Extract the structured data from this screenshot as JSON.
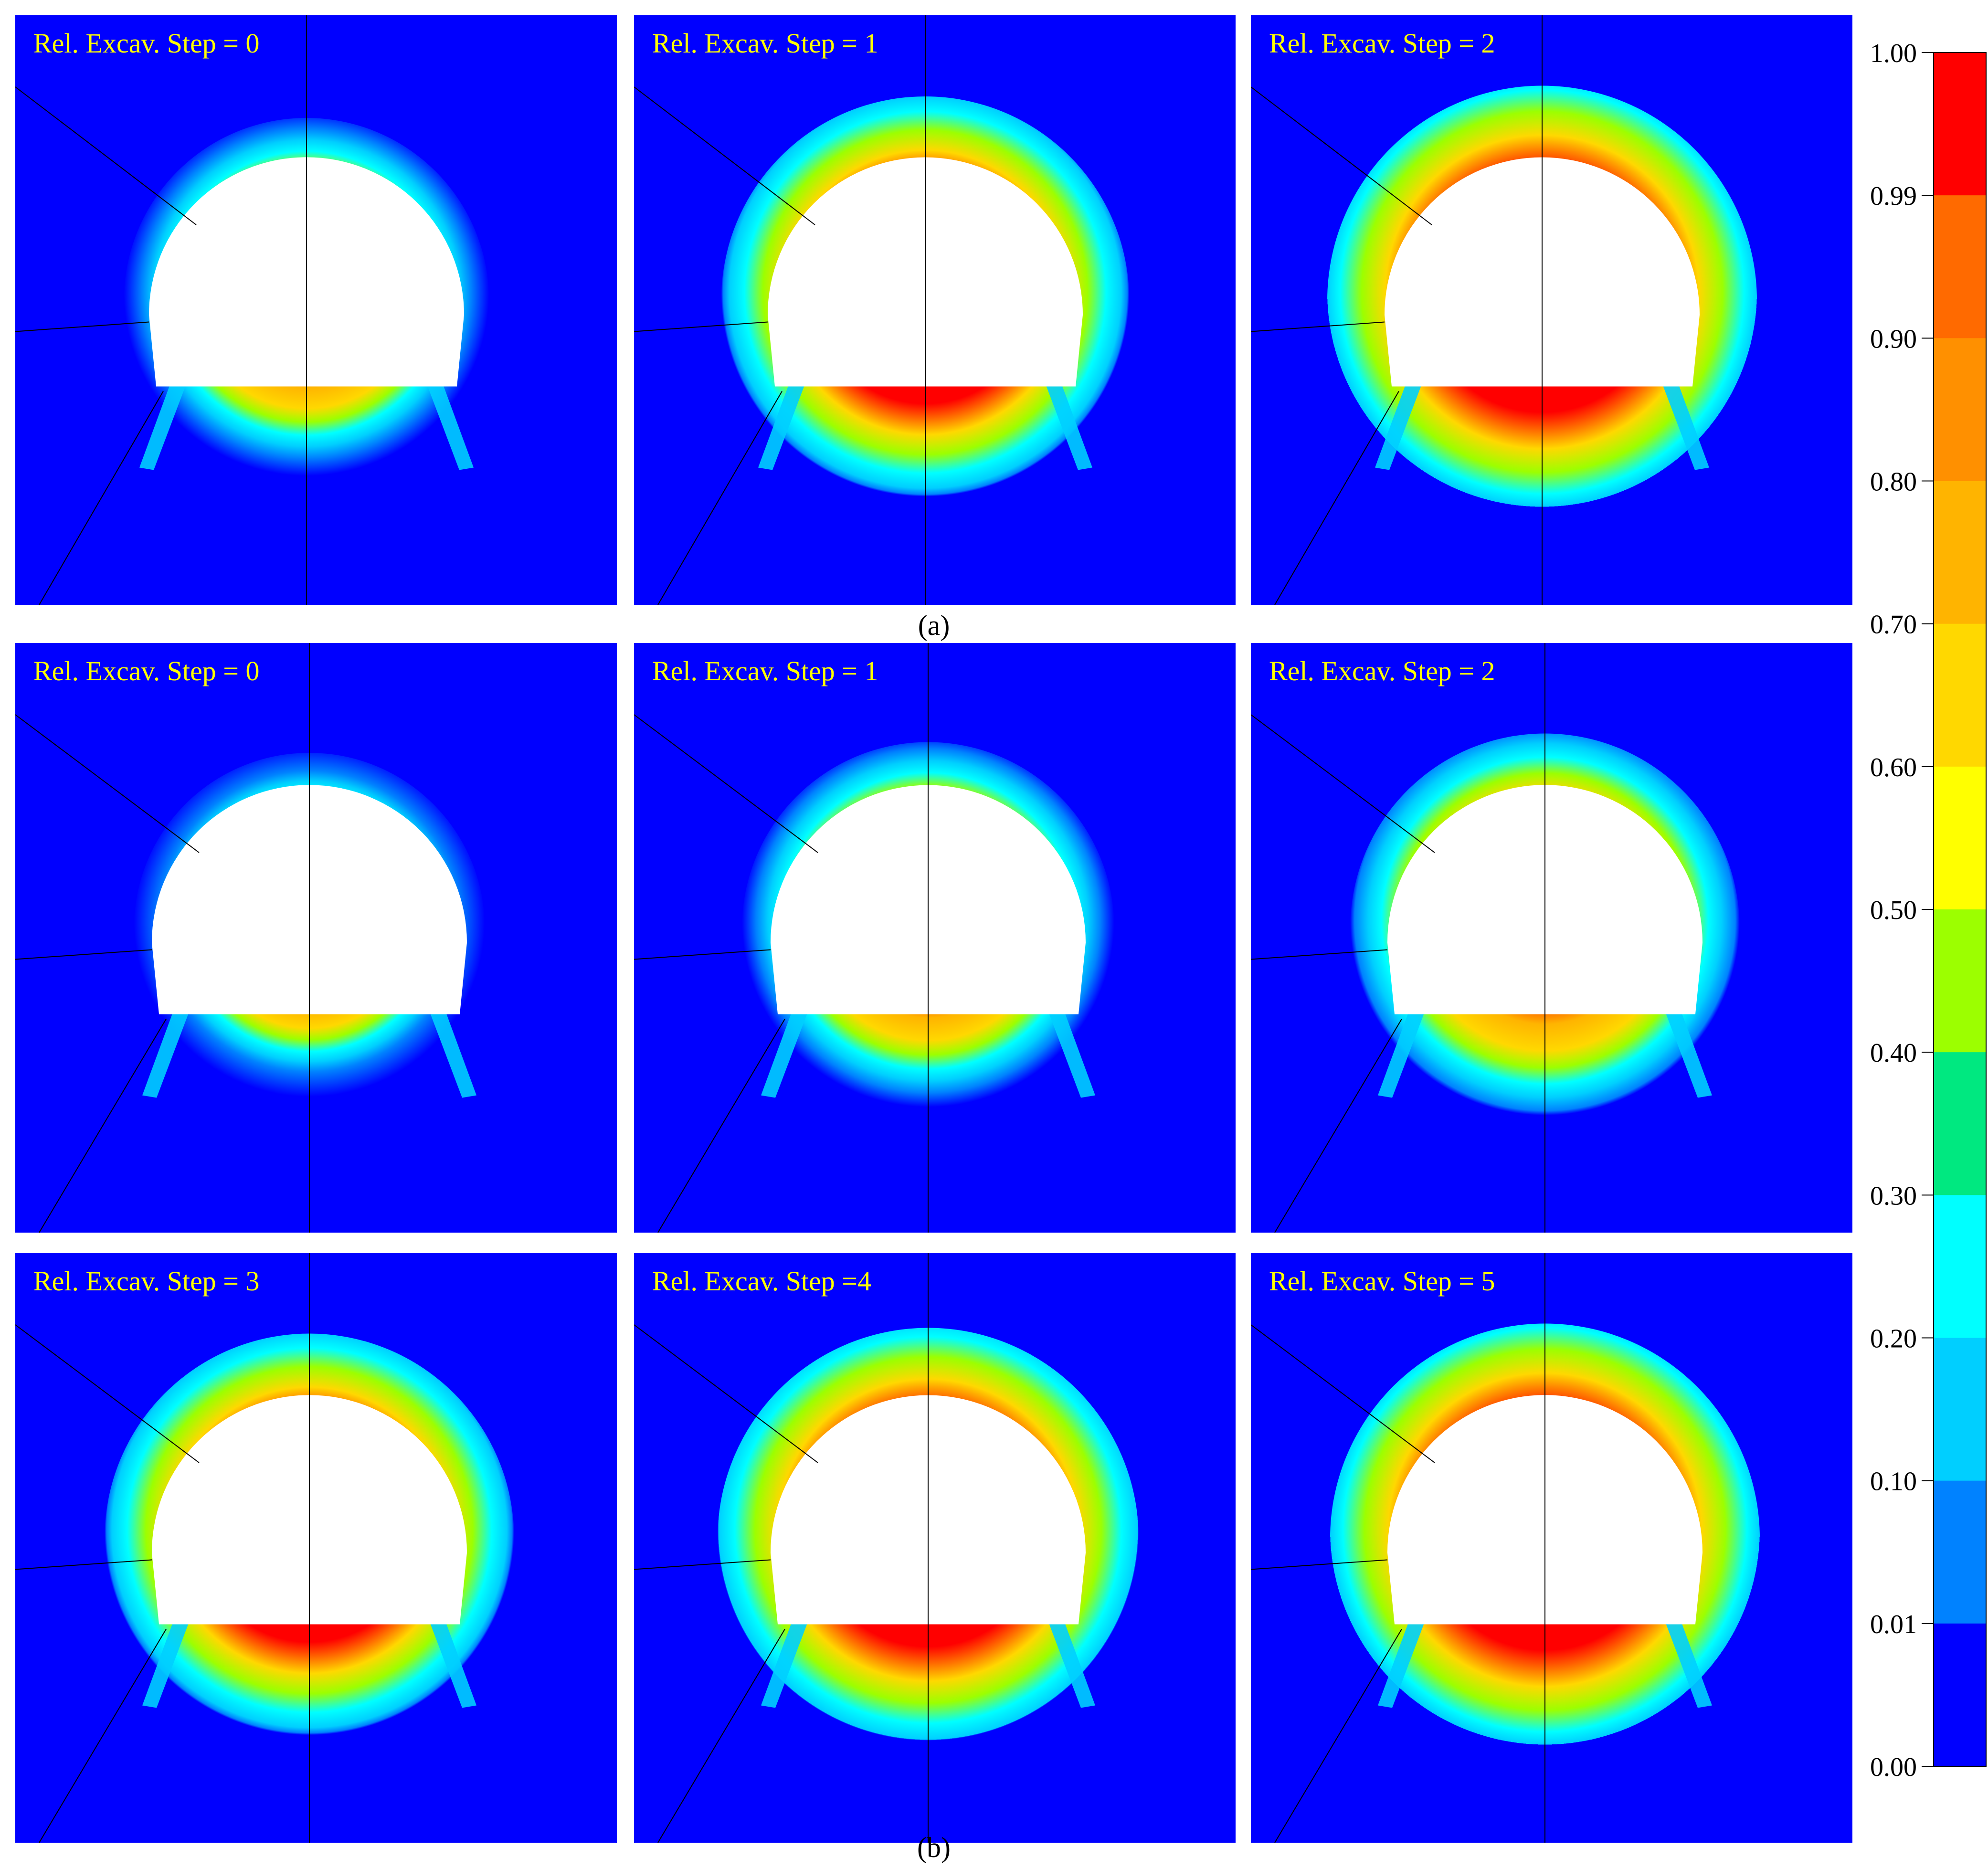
{
  "chart_data": {
    "type": "heatmap",
    "description_free": true,
    "panel_groups": [
      {
        "caption": "(a)",
        "panels": [
          {
            "title": "Rel. Excav. Step = 0",
            "step": 0,
            "level": 0.55
          },
          {
            "title": "Rel. Excav. Step = 1",
            "step": 1,
            "level": 0.85
          },
          {
            "title": "Rel. Excav. Step = 2",
            "step": 2,
            "level": 1.0
          }
        ]
      },
      {
        "caption": "(b)",
        "panels": [
          {
            "title": "Rel. Excav. Step = 0",
            "step": 0,
            "level": 0.45
          },
          {
            "title": "Rel. Excav. Step = 1",
            "step": 1,
            "level": 0.6
          },
          {
            "title": "Rel. Excav. Step = 2",
            "step": 2,
            "level": 0.72
          },
          {
            "title": "Rel. Excav. Step = 3",
            "step": 3,
            "level": 0.86
          },
          {
            "title": "Rel. Excav. Step =4",
            "step": 4,
            "level": 0.94
          },
          {
            "title": "Rel. Excav. Step = 5",
            "step": 5,
            "level": 1.0
          }
        ]
      }
    ],
    "colorbar": {
      "ticks": [
        "1.00",
        "0.99",
        "0.90",
        "0.80",
        "0.70",
        "0.60",
        "0.50",
        "0.40",
        "0.30",
        "0.20",
        "0.10",
        "0.01",
        "0.00"
      ],
      "colors_top_to_bottom": [
        "#ff0000",
        "#ff0000",
        "#ff6a00",
        "#ff9000",
        "#ffb400",
        "#ffd800",
        "#ffff00",
        "#9cff00",
        "#00e880",
        "#00ffff",
        "#00cfff",
        "#0082ff",
        "#0000ff"
      ]
    },
    "background_color": "#0000ff",
    "opening_color": "#ffffff"
  }
}
